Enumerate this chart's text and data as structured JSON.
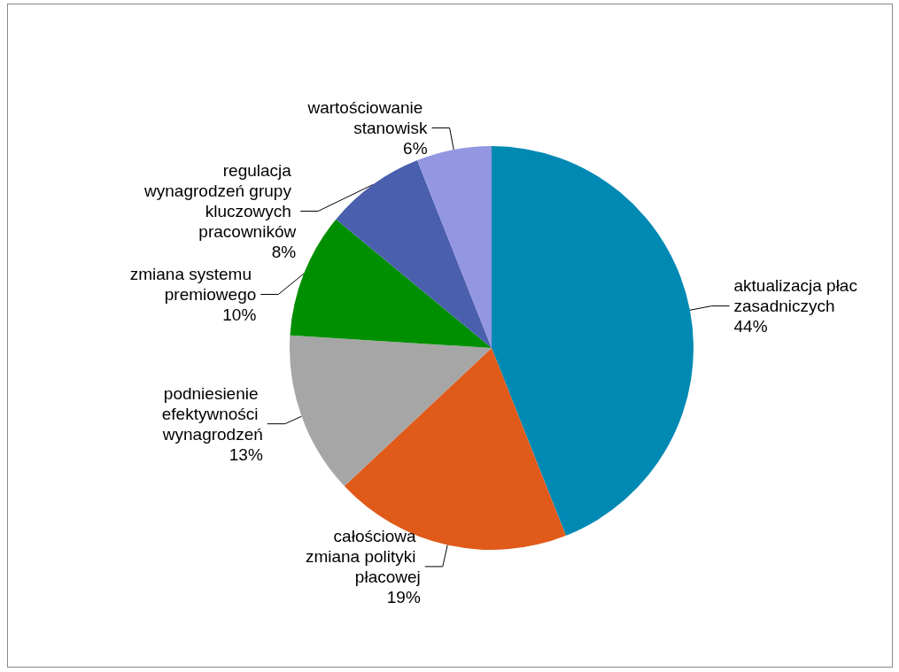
{
  "chart_data": {
    "type": "pie",
    "categories": [
      "aktualizacja płac zasadniczych",
      "całościowa zmiana polityki płacowej",
      "podniesienie efektywności wynagrodzeń",
      "zmiana systemu premiowego",
      "regulacja wynagrodzeń grupy kluczowych pracowników",
      "wartościowanie stanowisk"
    ],
    "values": [
      44,
      19,
      13,
      10,
      8,
      6
    ],
    "value_labels": [
      "44%",
      "19%",
      "13%",
      "10%",
      "8%",
      "6%"
    ],
    "colors": [
      "#0089b3",
      "#e05a1a",
      "#a6a6a6",
      "#008f00",
      "#4a5fad",
      "#9396e0"
    ],
    "legend": false
  }
}
